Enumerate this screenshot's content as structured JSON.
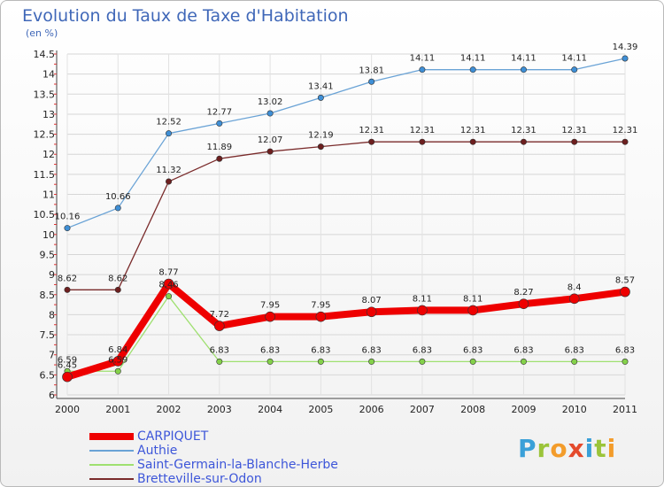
{
  "title": "Evolution du Taux de Taxe d'Habitation",
  "unit": "(en %)",
  "logo": {
    "letters": [
      "P",
      "r",
      "o",
      "x",
      "i",
      "t",
      "i"
    ],
    "colors": [
      "#3aa0d8",
      "#9bc43a",
      "#f39c2b",
      "#e44a2c",
      "#3aa0d8",
      "#9bc43a",
      "#f39c2b"
    ]
  },
  "chart_data": {
    "type": "line",
    "title": "Evolution du Taux de Taxe d'Habitation",
    "ylabel": "(en %)",
    "xlabel": "",
    "ylim": [
      6,
      14.5
    ],
    "yticks": [
      "6",
      "6.5",
      "7",
      "7.5",
      "8",
      "8.5",
      "9",
      "9.5",
      "10",
      "10.5",
      "11",
      "11.5",
      "12",
      "12.5",
      "13",
      "13.5",
      "14",
      "14.5"
    ],
    "ytick_values": [
      6,
      6.5,
      7,
      7.5,
      8,
      8.5,
      9,
      9.5,
      10,
      10.5,
      11,
      11.5,
      12,
      12.5,
      13,
      13.5,
      14,
      14.5
    ],
    "x": [
      "2000",
      "2001",
      "2002",
      "2003",
      "2004",
      "2005",
      "2006",
      "2007",
      "2008",
      "2009",
      "2010",
      "2011"
    ],
    "grid": true,
    "legend_position": "bottom-left",
    "series": [
      {
        "name": "CARPIQUET",
        "color": "#ee0000",
        "width": 8,
        "marker_color": "#ee0000",
        "values": [
          6.45,
          6.84,
          8.77,
          7.72,
          7.95,
          7.95,
          8.07,
          8.11,
          8.11,
          8.27,
          8.4,
          8.57
        ],
        "labels": [
          "6.45",
          "6.84",
          "8.77",
          "7.72",
          "7.95",
          "7.95",
          "8.07",
          "8.11",
          "8.11",
          "8.27",
          "8.4",
          "8.57"
        ]
      },
      {
        "name": "Authie",
        "color": "#6aa3d6",
        "width": 1.3,
        "marker_color": "#3f8fd6",
        "values": [
          10.16,
          10.66,
          12.52,
          12.77,
          13.02,
          13.41,
          13.81,
          14.11,
          14.11,
          14.11,
          14.11,
          14.39
        ],
        "labels": [
          "10.16",
          "10.66",
          "12.52",
          "12.77",
          "13.02",
          "13.41",
          "13.81",
          "14.11",
          "14.11",
          "14.11",
          "14.11",
          "14.39"
        ]
      },
      {
        "name": "Saint-Germain-la-Blanche-Herbe",
        "color": "#9fe070",
        "width": 1.3,
        "marker_color": "#84d14a",
        "values": [
          6.59,
          6.59,
          8.46,
          6.83,
          6.83,
          6.83,
          6.83,
          6.83,
          6.83,
          6.83,
          6.83,
          6.83
        ],
        "labels": [
          "6.59",
          "6.59",
          "8.46",
          "6.83",
          "6.83",
          "6.83",
          "6.83",
          "6.83",
          "6.83",
          "6.83",
          "6.83",
          "6.83"
        ]
      },
      {
        "name": "Bretteville-sur-Odon",
        "color": "#7a2b2b",
        "width": 1.3,
        "marker_color": "#6d1f1f",
        "values": [
          8.62,
          8.62,
          11.32,
          11.89,
          12.07,
          12.19,
          12.31,
          12.31,
          12.31,
          12.31,
          12.31,
          12.31
        ],
        "labels": [
          "8.62",
          "8.62",
          "11.32",
          "11.89",
          "12.07",
          "12.19",
          "12.31",
          "12.31",
          "12.31",
          "12.31",
          "12.31",
          "12.31"
        ]
      }
    ]
  }
}
